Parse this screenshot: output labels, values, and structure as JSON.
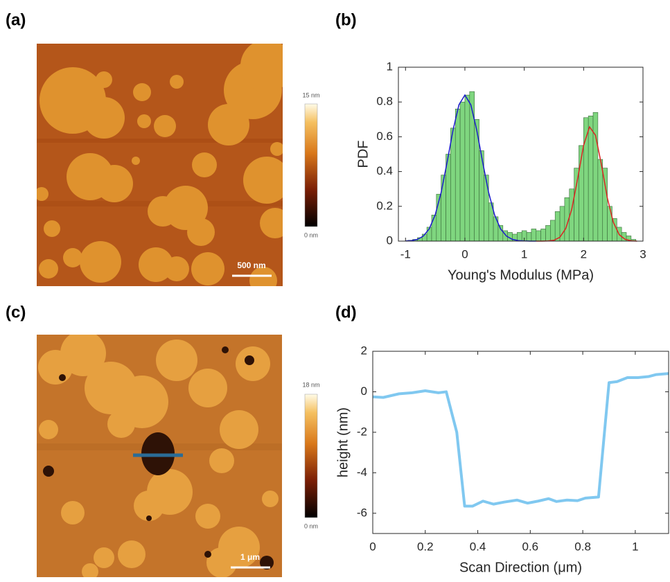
{
  "panel_labels": [
    "(a)",
    "(b)",
    "(c)",
    "(d)"
  ],
  "images": [
    {
      "colorbar_max": "15 nm",
      "colorbar_min": "0 nm",
      "scale_bar": "500 nm"
    },
    {
      "colorbar_max": "18 nm",
      "colorbar_min": "0 nm",
      "scale_bar": "1 μm"
    }
  ],
  "chart_data": [
    {
      "type": "histogram",
      "xlabel": "Young's Modulus (MPa)",
      "ylabel": "PDF",
      "color": "#7fd67f",
      "bins": [
        -0.96,
        -0.88,
        -0.8,
        -0.72,
        -0.64,
        -0.56,
        -0.48,
        -0.4,
        -0.32,
        -0.24,
        -0.16,
        -0.08,
        0,
        0.08,
        0.16,
        0.24,
        0.32,
        0.4,
        0.48,
        0.56,
        0.64,
        0.72,
        0.8,
        0.88,
        0.96,
        1.04,
        1.12,
        1.2,
        1.28,
        1.36,
        1.44,
        1.52,
        1.6,
        1.68,
        1.76,
        1.84,
        1.92,
        2,
        2.08,
        2.16,
        2.24,
        2.32,
        2.4,
        2.48,
        2.56,
        2.64,
        2.72,
        2.8,
        2.88
      ],
      "values": [
        0.005,
        0.01,
        0.02,
        0.04,
        0.08,
        0.15,
        0.27,
        0.38,
        0.5,
        0.65,
        0.76,
        0.8,
        0.84,
        0.86,
        0.7,
        0.52,
        0.38,
        0.22,
        0.14,
        0.09,
        0.06,
        0.05,
        0.04,
        0.05,
        0.06,
        0.05,
        0.07,
        0.06,
        0.07,
        0.09,
        0.12,
        0.17,
        0.2,
        0.25,
        0.3,
        0.42,
        0.55,
        0.71,
        0.72,
        0.74,
        0.47,
        0.42,
        0.2,
        0.13,
        0.08,
        0.05,
        0.03,
        0.01
      ],
      "fits": [
        {
          "color": "#1a1acc",
          "x": [
            -1,
            -0.9,
            -0.8,
            -0.7,
            -0.6,
            -0.5,
            -0.4,
            -0.3,
            -0.2,
            -0.1,
            0,
            0.1,
            0.2,
            0.3,
            0.4,
            0.5,
            0.6,
            0.7,
            0.8,
            0.9,
            1,
            1.1,
            1.2
          ],
          "values": [
            0.001,
            0.003,
            0.01,
            0.029,
            0.071,
            0.151,
            0.28,
            0.453,
            0.638,
            0.784,
            0.84,
            0.784,
            0.638,
            0.453,
            0.28,
            0.151,
            0.071,
            0.029,
            0.01,
            0.003,
            0.001,
            0,
            0
          ]
        },
        {
          "color": "#dd2222",
          "x": [
            1.2,
            1.3,
            1.4,
            1.5,
            1.6,
            1.7,
            1.8,
            1.9,
            2,
            2.1,
            2.2,
            2.3,
            2.4,
            2.5,
            2.6,
            2.7,
            2.8,
            2.9
          ],
          "values": [
            0,
            0,
            0.001,
            0.005,
            0.022,
            0.073,
            0.183,
            0.36,
            0.551,
            0.657,
            0.609,
            0.44,
            0.248,
            0.109,
            0.037,
            0.01,
            0.002,
            0
          ]
        }
      ],
      "xlim": [
        -1.12,
        3
      ],
      "ylim": [
        0,
        1
      ],
      "xticks": [
        -1,
        0,
        1,
        2,
        3
      ],
      "yticks": [
        0,
        0.2,
        0.4,
        0.6,
        0.8,
        1
      ]
    },
    {
      "type": "line",
      "xlabel": "Scan Direction (μm)",
      "ylabel": "height (nm)",
      "color": "#80c8f0",
      "x": [
        0,
        0.04,
        0.1,
        0.15,
        0.2,
        0.25,
        0.28,
        0.32,
        0.35,
        0.38,
        0.42,
        0.46,
        0.5,
        0.55,
        0.59,
        0.63,
        0.67,
        0.7,
        0.74,
        0.78,
        0.81,
        0.86,
        0.9,
        0.93,
        0.97,
        1.01,
        1.05,
        1.08,
        1.127
      ],
      "values": [
        -0.25,
        -0.28,
        -0.1,
        -0.05,
        0.05,
        -0.05,
        0,
        -2,
        -5.65,
        -5.65,
        -5.4,
        -5.55,
        -5.45,
        -5.35,
        -5.5,
        -5.4,
        -5.28,
        -5.42,
        -5.35,
        -5.38,
        -5.25,
        -5.2,
        0.45,
        0.5,
        0.7,
        0.7,
        0.75,
        0.85,
        0.9
      ],
      "xlim": [
        0,
        1.127
      ],
      "ylim": [
        -7,
        2
      ],
      "xticks": [
        0,
        0.2,
        0.4,
        0.6,
        0.8,
        1
      ],
      "yticks": [
        -6,
        -4,
        -2,
        0,
        2
      ]
    }
  ]
}
